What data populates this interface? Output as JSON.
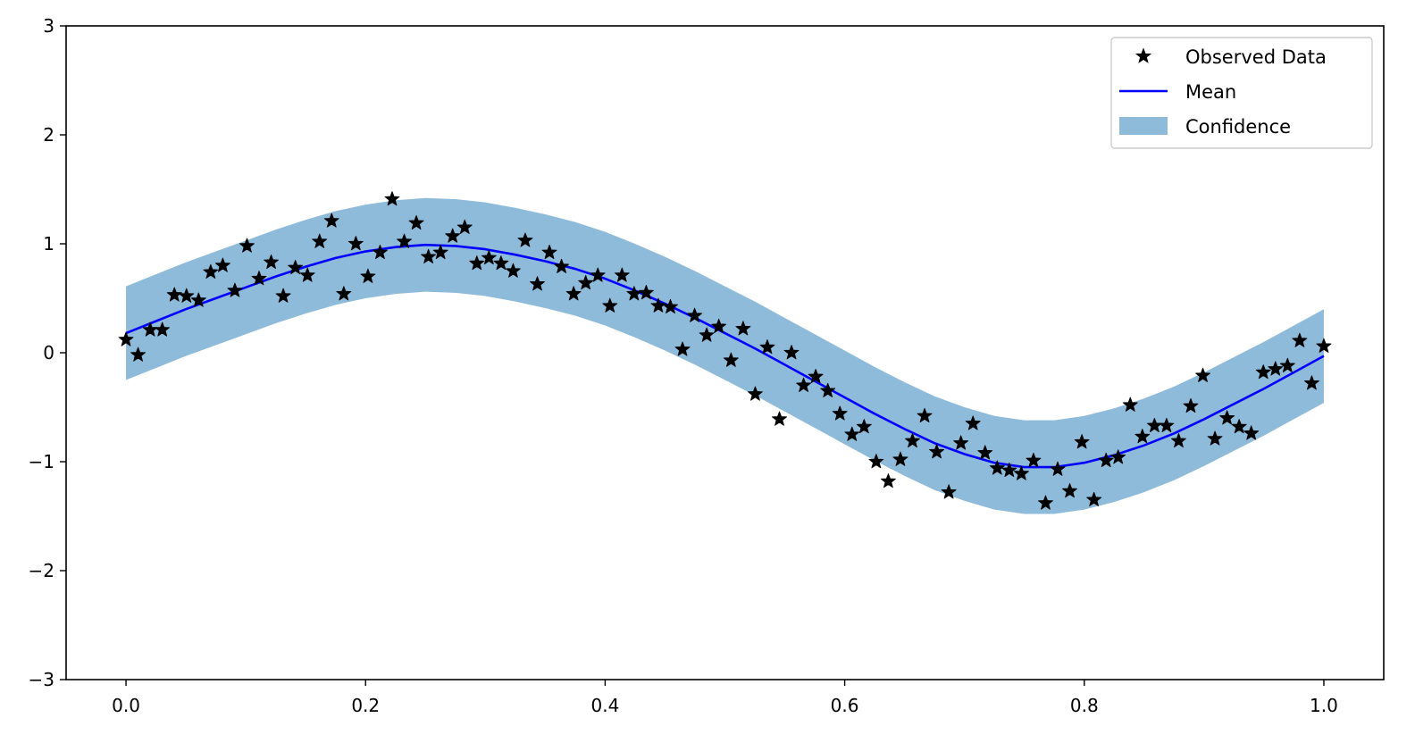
{
  "chart_data": {
    "type": "line",
    "title": "",
    "xlabel": "",
    "ylabel": "",
    "xlim": [
      -0.05,
      1.05
    ],
    "ylim": [
      -3,
      3
    ],
    "x_ticks": [
      0.0,
      0.2,
      0.4,
      0.6,
      0.8,
      1.0
    ],
    "x_tick_labels": [
      "0.0",
      "0.2",
      "0.4",
      "0.6",
      "0.8",
      "1.0"
    ],
    "y_ticks": [
      -3,
      -2,
      -1,
      0,
      1,
      2,
      3
    ],
    "y_tick_labels": [
      "−3",
      "−2",
      "−1",
      "0",
      "1",
      "2",
      "3"
    ],
    "grid": false,
    "legend_position": "top-right",
    "colors": {
      "observed": "#000000",
      "mean": "#0000ff",
      "confidence": "#8fbbdb"
    },
    "series": [
      {
        "name": "Observed Data",
        "kind": "scatter",
        "marker": "star",
        "x": [
          0.0,
          0.0101,
          0.0202,
          0.0303,
          0.0404,
          0.0505,
          0.0606,
          0.0707,
          0.0808,
          0.0909,
          0.101,
          0.1111,
          0.1212,
          0.1313,
          0.1414,
          0.1515,
          0.1616,
          0.1717,
          0.1818,
          0.1919,
          0.202,
          0.2121,
          0.2222,
          0.2323,
          0.2424,
          0.2525,
          0.2626,
          0.2727,
          0.2828,
          0.2929,
          0.303,
          0.3131,
          0.3232,
          0.3333,
          0.3434,
          0.3535,
          0.3636,
          0.3737,
          0.3838,
          0.3939,
          0.404,
          0.4141,
          0.4242,
          0.4343,
          0.4444,
          0.4545,
          0.4646,
          0.4747,
          0.4848,
          0.4949,
          0.5051,
          0.5152,
          0.5253,
          0.5354,
          0.5455,
          0.5556,
          0.5657,
          0.5758,
          0.5859,
          0.596,
          0.6061,
          0.6162,
          0.6263,
          0.6364,
          0.6465,
          0.6566,
          0.6667,
          0.6768,
          0.6869,
          0.697,
          0.7071,
          0.7172,
          0.7273,
          0.7374,
          0.7475,
          0.7576,
          0.7677,
          0.7778,
          0.7879,
          0.798,
          0.8081,
          0.8182,
          0.8283,
          0.8384,
          0.8485,
          0.8586,
          0.8687,
          0.8788,
          0.8889,
          0.899,
          0.9091,
          0.9192,
          0.9293,
          0.9394,
          0.9495,
          0.9596,
          0.9697,
          0.9798,
          0.9899,
          1.0
        ],
        "y": [
          0.12,
          -0.02,
          0.21,
          0.21,
          0.53,
          0.52,
          0.48,
          0.74,
          0.8,
          0.57,
          0.98,
          0.68,
          0.83,
          0.52,
          0.78,
          0.71,
          1.02,
          1.21,
          0.54,
          1.0,
          0.7,
          0.92,
          1.41,
          1.02,
          1.19,
          0.88,
          0.92,
          1.07,
          1.15,
          0.82,
          0.87,
          0.82,
          0.75,
          1.03,
          0.63,
          0.92,
          0.79,
          0.54,
          0.64,
          0.71,
          0.43,
          0.71,
          0.54,
          0.55,
          0.43,
          0.42,
          0.03,
          0.34,
          0.16,
          0.24,
          -0.07,
          0.22,
          -0.38,
          0.05,
          -0.61,
          0.0,
          -0.3,
          -0.22,
          -0.35,
          -0.56,
          -0.75,
          -0.68,
          -1.0,
          -1.18,
          -0.98,
          -0.81,
          -0.58,
          -0.91,
          -1.28,
          -0.83,
          -0.65,
          -0.92,
          -1.06,
          -1.08,
          -1.11,
          -0.99,
          -1.38,
          -1.07,
          -1.27,
          -0.82,
          -1.35,
          -0.99,
          -0.96,
          -0.48,
          -0.77,
          -0.67,
          -0.67,
          -0.81,
          -0.49,
          -0.21,
          -0.79,
          -0.6,
          -0.68,
          -0.74,
          -0.18,
          -0.15,
          -0.12,
          0.11,
          -0.28,
          0.06
        ]
      },
      {
        "name": "Mean",
        "kind": "line",
        "x": [
          0.0,
          0.025,
          0.05,
          0.075,
          0.1,
          0.125,
          0.15,
          0.175,
          0.2,
          0.225,
          0.25,
          0.275,
          0.3,
          0.325,
          0.35,
          0.375,
          0.4,
          0.425,
          0.45,
          0.475,
          0.5,
          0.525,
          0.55,
          0.575,
          0.6,
          0.625,
          0.65,
          0.675,
          0.7,
          0.725,
          0.75,
          0.775,
          0.8,
          0.825,
          0.85,
          0.875,
          0.9,
          0.925,
          0.95,
          0.975,
          1.0
        ],
        "y": [
          0.18,
          0.29,
          0.4,
          0.5,
          0.6,
          0.7,
          0.79,
          0.87,
          0.93,
          0.97,
          0.99,
          0.98,
          0.95,
          0.9,
          0.84,
          0.77,
          0.68,
          0.57,
          0.45,
          0.32,
          0.18,
          0.04,
          -0.11,
          -0.26,
          -0.41,
          -0.56,
          -0.7,
          -0.83,
          -0.93,
          -1.01,
          -1.05,
          -1.05,
          -1.01,
          -0.94,
          -0.85,
          -0.74,
          -0.61,
          -0.47,
          -0.33,
          -0.18,
          -0.03
        ]
      },
      {
        "name": "Confidence",
        "kind": "band",
        "half_width": 0.43
      }
    ]
  }
}
